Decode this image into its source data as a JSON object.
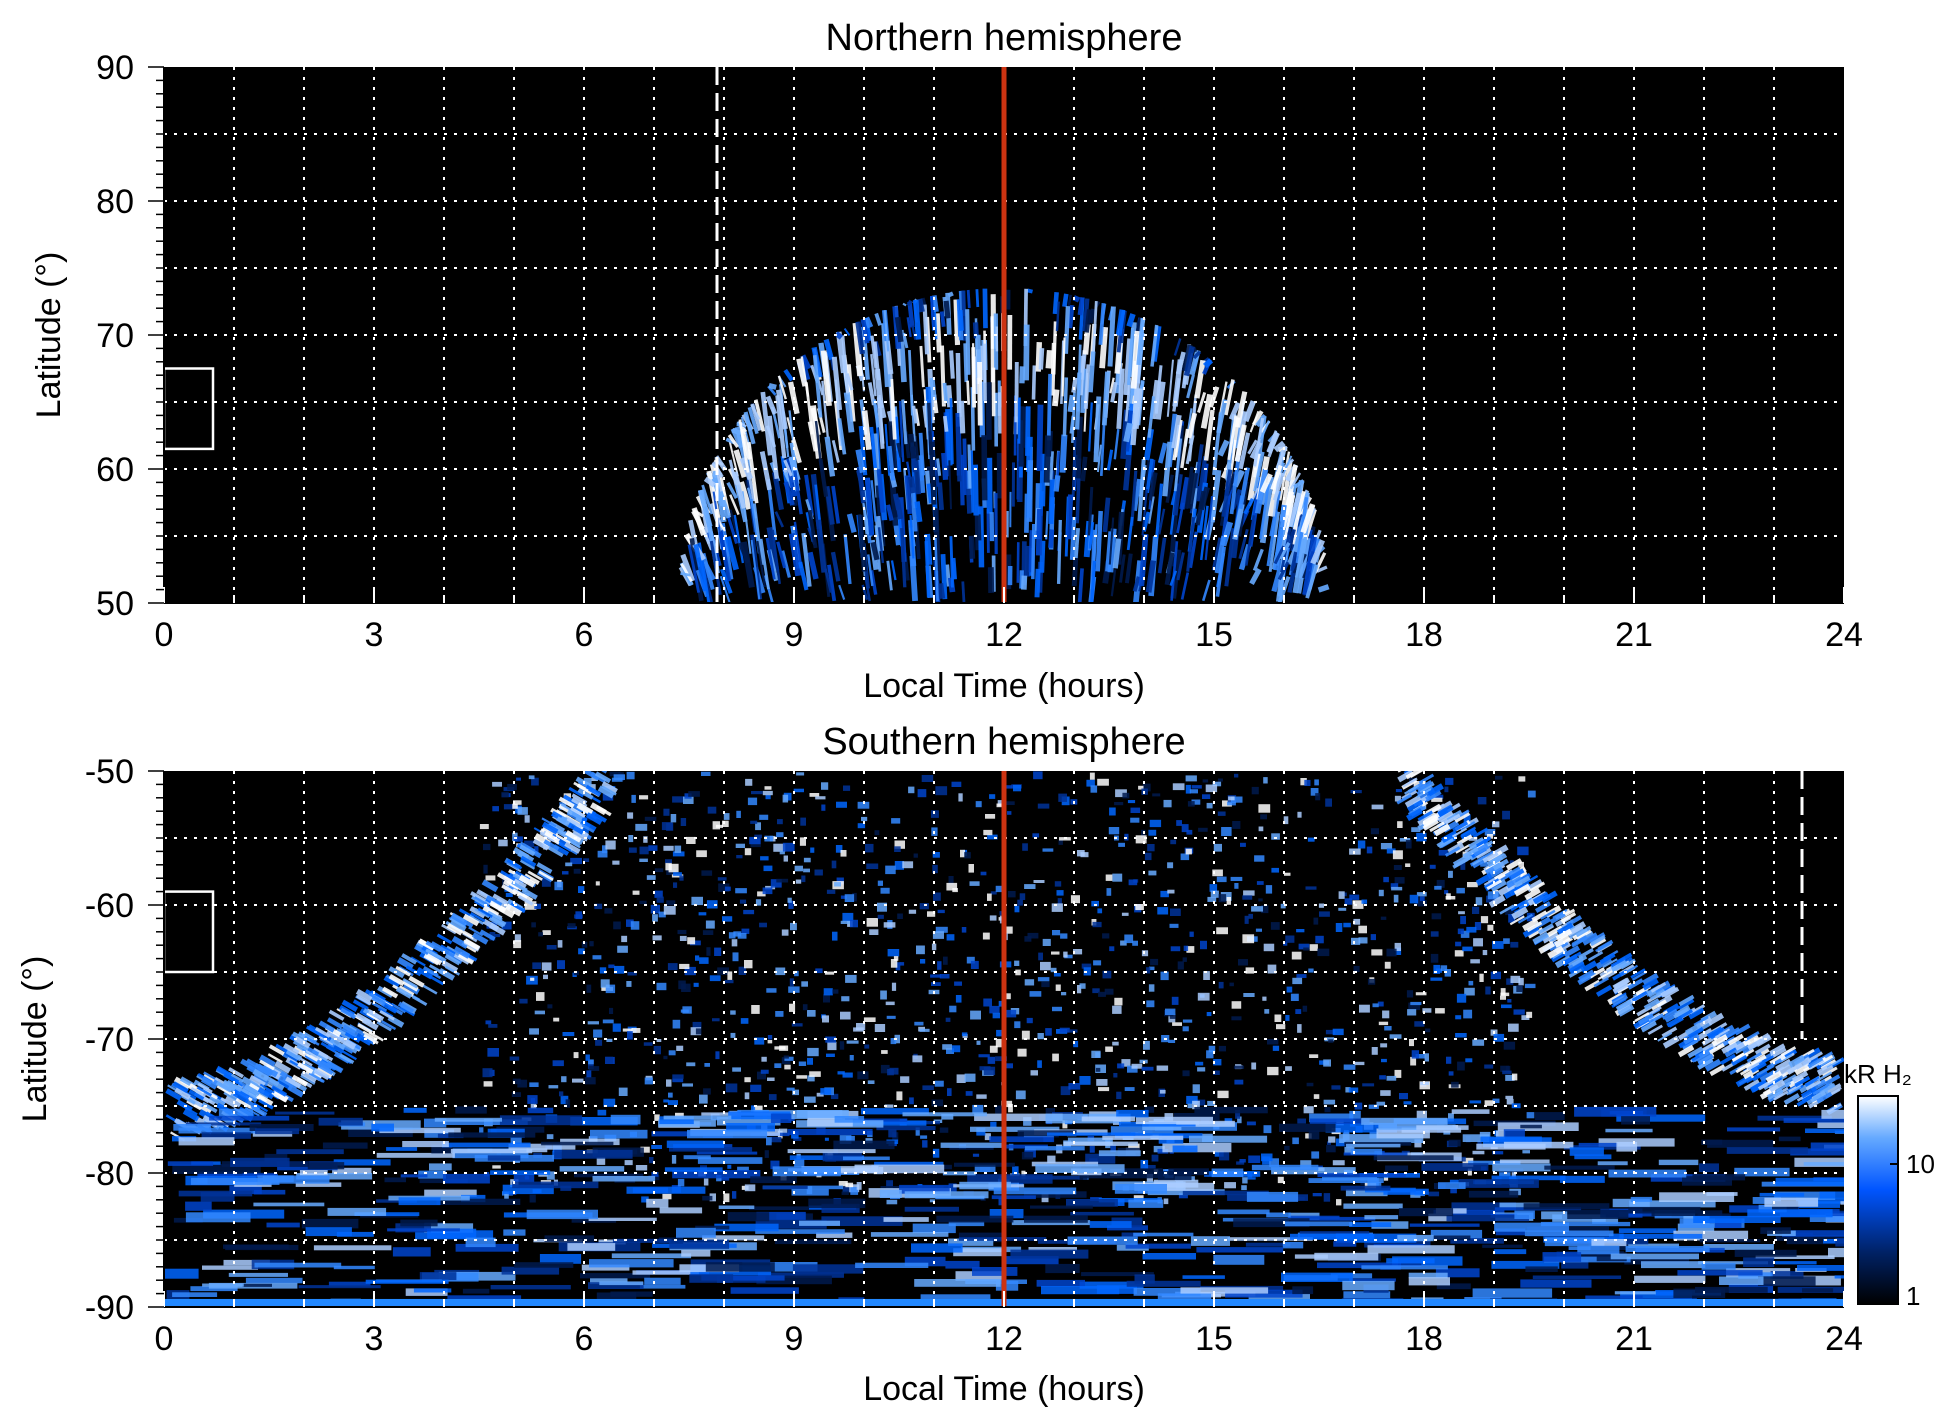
{
  "chart_data": [
    {
      "type": "heatmap",
      "title": "Northern hemisphere",
      "xlabel": "Local Time (hours)",
      "ylabel": "Latitude (°)",
      "xlim": [
        0,
        24
      ],
      "ylim": [
        50,
        90
      ],
      "xticks": [
        "0",
        "3",
        "6",
        "9",
        "12",
        "15",
        "18",
        "21",
        "24"
      ],
      "yticks": [
        "50",
        "60",
        "70",
        "80",
        "90"
      ],
      "grid": true,
      "noon_line_lt": 12,
      "dashed_line_lt": 7.9,
      "box": {
        "lt": [
          0,
          0.7
        ],
        "lat": [
          61.5,
          67.5
        ]
      },
      "emission": {
        "type": "dome",
        "center_lt": 12,
        "half_width_lt": 4.5,
        "min_lat": 50,
        "peak_lat": 73.5,
        "bright_ring_lat": 66
      }
    },
    {
      "type": "heatmap",
      "title": "Southern hemisphere",
      "xlabel": "Local Time (hours)",
      "ylabel": "Latitude (°)",
      "xlim": [
        0,
        24
      ],
      "ylim": [
        -90,
        -50
      ],
      "xticks": [
        "0",
        "3",
        "6",
        "9",
        "12",
        "15",
        "18",
        "21",
        "24"
      ],
      "yticks": [
        "-50",
        "-60",
        "-70",
        "-80",
        "-90"
      ],
      "grid": true,
      "noon_line_lt": 12,
      "dashed_line_lt": 23.4,
      "box": {
        "lt": [
          0,
          0.7
        ],
        "lat": [
          -65,
          -59
        ]
      },
      "emission": {
        "type": "bowl",
        "center_lt": 12,
        "dawn_edge_lt": 5.5,
        "dusk_edge_lt": 18.5,
        "oval_lat_dawn": -75,
        "oval_lat_dusk": -73
      }
    }
  ],
  "colorbar": {
    "label": "kR H₂",
    "tick_labels": [
      "1",
      "10"
    ],
    "scale": "log",
    "range": [
      1,
      25
    ],
    "colors": [
      "#000000",
      "#002266",
      "#0055ff",
      "#66aaff",
      "#ffffff"
    ]
  },
  "colors": {
    "background": "#000000",
    "noon_line": "#cc3311",
    "grid": "#ffffff"
  }
}
